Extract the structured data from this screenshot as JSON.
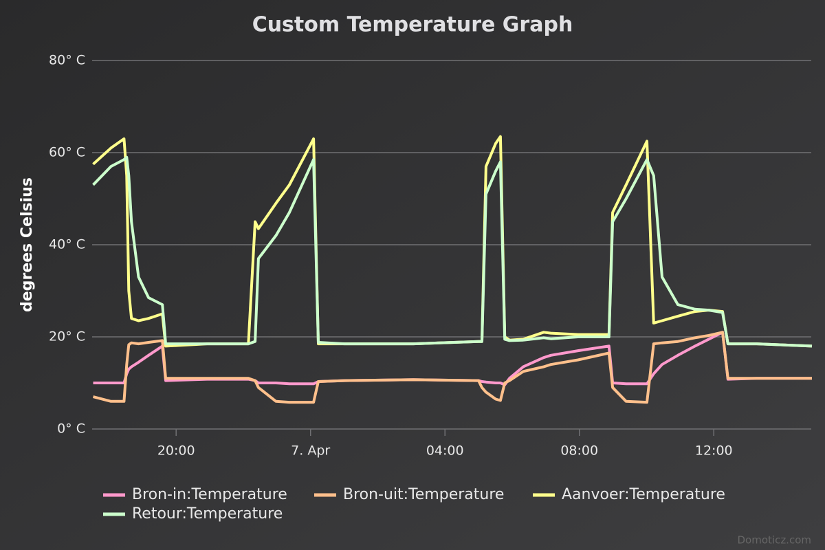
{
  "chart_data": {
    "type": "line",
    "title": "Custom Temperature Graph",
    "y_label": "degrees Celsius",
    "credit": "Domoticz.com",
    "x": [
      17.53,
      18.06,
      18.45,
      18.53,
      18.59,
      18.67,
      18.88,
      19.18,
      19.59,
      19.69,
      20.92,
      22.15,
      22.35,
      22.45,
      22.97,
      23.37,
      24.09,
      24.23,
      25.01,
      27.06,
      29.0,
      29.1,
      29.22,
      29.51,
      29.65,
      29.78,
      29.92,
      30.33,
      30.94,
      31.15,
      31.96,
      32.88,
      32.99,
      33.39,
      34.01,
      34.21,
      34.46,
      34.93,
      35.44,
      35.85,
      36.26,
      36.42,
      37.28,
      38.92
    ],
    "series": [
      {
        "name": "Bron-in:Temperature",
        "color": "#ff99cc",
        "values": [
          10,
          10,
          10,
          12,
          13,
          13.5,
          14.5,
          16,
          18,
          10.5,
          10.8,
          10.8,
          10.5,
          10,
          10,
          9.8,
          9.8,
          10.3,
          10.5,
          10.7,
          10.5,
          10.3,
          10.2,
          10,
          10,
          9.6,
          11,
          13.5,
          15.5,
          16,
          17,
          18,
          10,
          9.8,
          9.8,
          12,
          14,
          16,
          18,
          19.5,
          21,
          10.8,
          11,
          11
        ]
      },
      {
        "name": "Bron-uit:Temperature",
        "color": "#ffc08c",
        "values": [
          7,
          6,
          6,
          14,
          18.3,
          18.7,
          18.5,
          18.8,
          19.2,
          11,
          11,
          11,
          10.5,
          9,
          6,
          5.8,
          5.8,
          10.3,
          10.5,
          10.7,
          10.5,
          9,
          8,
          6.5,
          6.2,
          10,
          10.5,
          12.5,
          13.5,
          14,
          15,
          16.5,
          9,
          6,
          5.8,
          18.5,
          18.7,
          19,
          19.8,
          20.3,
          21,
          11,
          11,
          11
        ]
      },
      {
        "name": "Aanvoer:Temperature",
        "color": "#ffff8c",
        "values": [
          57.5,
          61,
          63,
          55,
          30,
          24,
          23.5,
          24,
          25,
          18,
          18.5,
          18.5,
          45,
          43.5,
          49,
          53,
          63,
          18.5,
          18.5,
          18.5,
          19,
          19,
          57,
          62,
          63.5,
          20,
          19.3,
          19.5,
          21,
          20.8,
          20.5,
          20.5,
          47,
          53,
          62.5,
          23,
          23.5,
          24.5,
          25.5,
          25.8,
          25.5,
          18.5,
          18.5,
          18
        ]
      },
      {
        "name": "Retour:Temperature",
        "color": "#ccffcc",
        "values": [
          53,
          57,
          58.5,
          59,
          55,
          45,
          33,
          28.5,
          27,
          18.5,
          18.5,
          18.5,
          19,
          37,
          42,
          47,
          58.5,
          18.8,
          18.5,
          18.5,
          19,
          19,
          51,
          56,
          58,
          19.5,
          19.2,
          19.3,
          19.8,
          19.6,
          20,
          20,
          45,
          50,
          58.5,
          55,
          33,
          27,
          26,
          25.8,
          25.3,
          18.5,
          18.5,
          18
        ]
      }
    ],
    "xlim": [
      17.5,
      38.9
    ],
    "xticks": [
      {
        "value": 20,
        "label": "20:00"
      },
      {
        "value": 24,
        "label": "7. Apr"
      },
      {
        "value": 28,
        "label": "04:00"
      },
      {
        "value": 32,
        "label": "08:00"
      },
      {
        "value": 36,
        "label": "12:00"
      }
    ],
    "ylim": [
      0,
      80
    ],
    "yticks": [
      {
        "value": 0,
        "label": "0° C"
      },
      {
        "value": 20,
        "label": "20° C"
      },
      {
        "value": 40,
        "label": "40° C"
      },
      {
        "value": 60,
        "label": "60° C"
      },
      {
        "value": 80,
        "label": "80° C"
      }
    ],
    "grid": true
  }
}
